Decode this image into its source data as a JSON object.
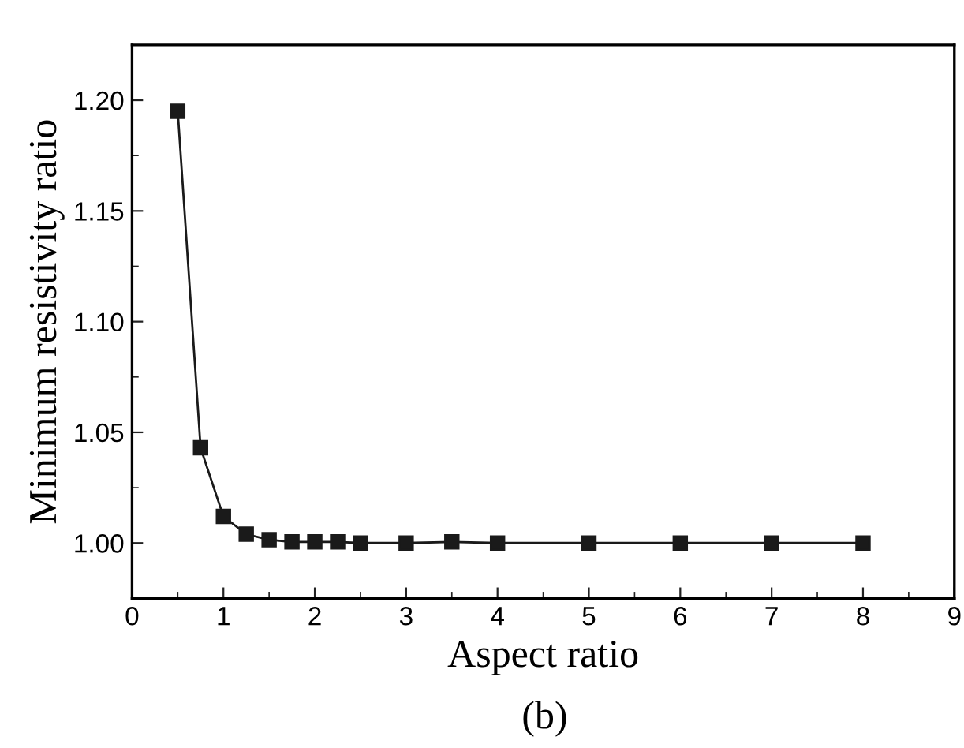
{
  "chart_data": {
    "type": "line",
    "xlabel": "Aspect ratio",
    "ylabel": "Minimum resistivity ratio",
    "annotations": [
      "(b)"
    ],
    "x": [
      0.5,
      0.75,
      1,
      1.25,
      1.5,
      1.75,
      2,
      2.25,
      2.5,
      3,
      3.5,
      4,
      5,
      6,
      7,
      8
    ],
    "series": [
      {
        "color": "#1a1a1a",
        "values": [
          1.195,
          1.043,
          1.012,
          1.004,
          1.0015,
          1.0005,
          1.0005,
          1.0005,
          1.0,
          1.0,
          1.0005,
          1.0,
          1.0,
          1.0,
          1.0,
          1.0
        ]
      }
    ],
    "xlim": [
      0,
      9
    ],
    "xticks": [
      0,
      1,
      2,
      3,
      4,
      5,
      6,
      7,
      8,
      9
    ],
    "ylim": [
      0.975,
      1.225
    ],
    "yticks": [
      {
        "value": 1.0,
        "label": "1.00"
      },
      {
        "value": 1.05,
        "label": "1.05"
      },
      {
        "value": 1.1,
        "label": "1.10"
      },
      {
        "value": 1.15,
        "label": "1.15"
      },
      {
        "value": 1.2,
        "label": "1.20"
      }
    ],
    "marker": "square",
    "line_style": "solid",
    "grid": false,
    "legend": false
  }
}
